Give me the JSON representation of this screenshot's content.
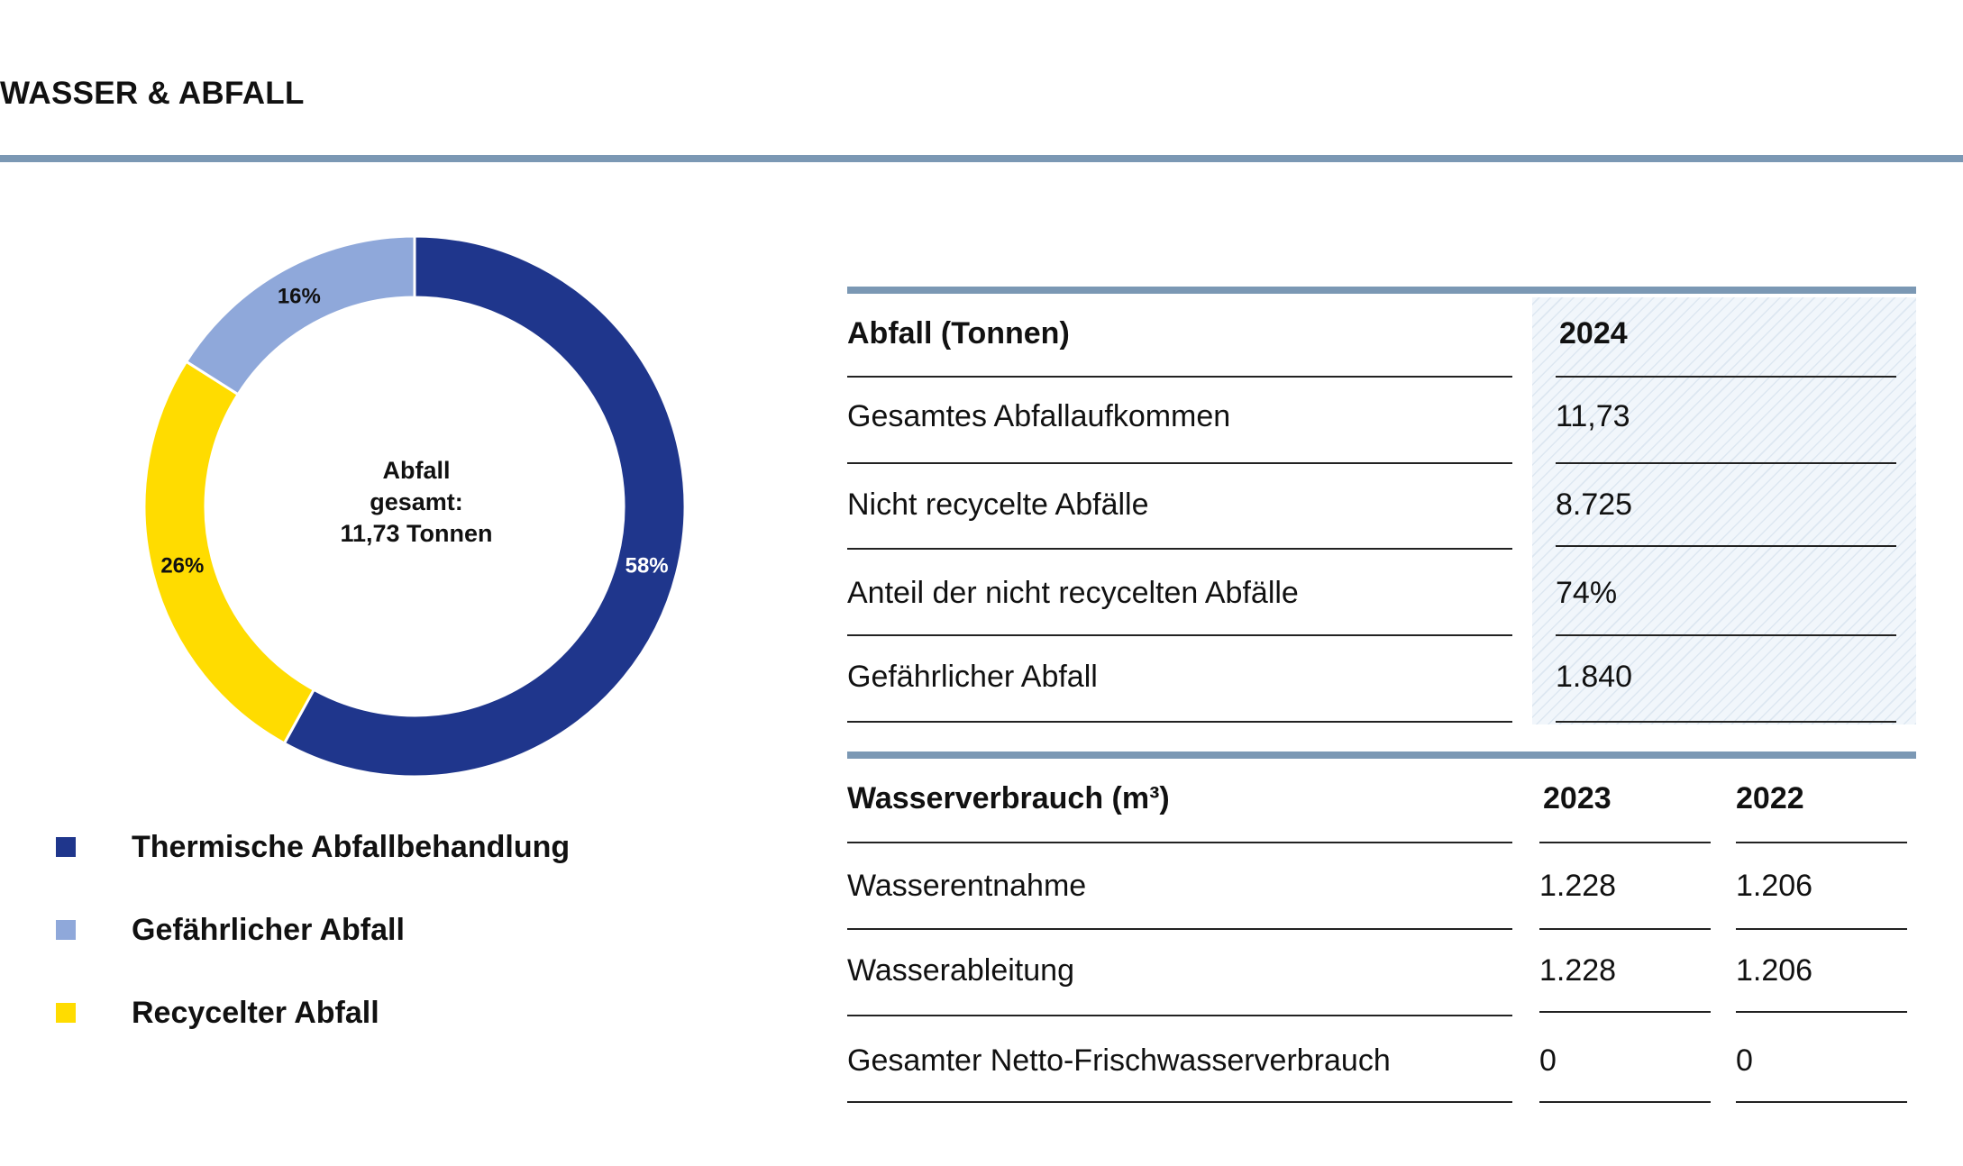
{
  "page": {
    "title": "WASSER & ABFALL"
  },
  "colors": {
    "rule": "#7b98b4",
    "thermisch": "#1f368c",
    "gefaehrlich": "#8fa8da",
    "recycelt": "#ffdc00"
  },
  "chart_data": {
    "type": "pie",
    "donut": true,
    "center_label": [
      "Abfall",
      "gesamt:",
      "11,73 Tonnen"
    ],
    "slices": [
      {
        "label": "Thermische Abfallbehandlung",
        "value": 58,
        "display": "58%",
        "color": "#1f368c",
        "label_color": "#ffffff"
      },
      {
        "label": "Recycelter Abfall",
        "value": 26,
        "display": "26%",
        "color": "#ffdc00",
        "label_color": "#111111"
      },
      {
        "label": "Gefährlicher Abfall",
        "value": 16,
        "display": "16%",
        "color": "#8fa8da",
        "label_color": "#111111"
      }
    ]
  },
  "legend": [
    {
      "label": "Thermische Abfallbehandlung",
      "color": "#1f368c"
    },
    {
      "label": "Gefährlicher Abfall",
      "color": "#8fa8da"
    },
    {
      "label": "Recycelter Abfall",
      "color": "#ffdc00"
    }
  ],
  "waste_table": {
    "header": "Abfall (Tonnen)",
    "year": "2024",
    "rows": [
      {
        "label": "Gesamtes Abfallaufkommen",
        "value": "11,73"
      },
      {
        "label": "Nicht recycelte Abfälle",
        "value": "8.725"
      },
      {
        "label": "Anteil der nicht recycelten Abfälle",
        "value": "74%"
      },
      {
        "label": "Gefährlicher Abfall",
        "value": "1.840"
      }
    ]
  },
  "water_table": {
    "header": "Wasserverbrauch (m³)",
    "years": [
      "2023",
      "2022"
    ],
    "rows": [
      {
        "label": "Wasserentnahme",
        "values": [
          "1.228",
          "1.206"
        ]
      },
      {
        "label": "Wasserableitung",
        "values": [
          "1.228",
          "1.206"
        ]
      },
      {
        "label": "Gesamter Netto-Frischwasserverbrauch",
        "values": [
          "0",
          "0"
        ]
      }
    ]
  }
}
